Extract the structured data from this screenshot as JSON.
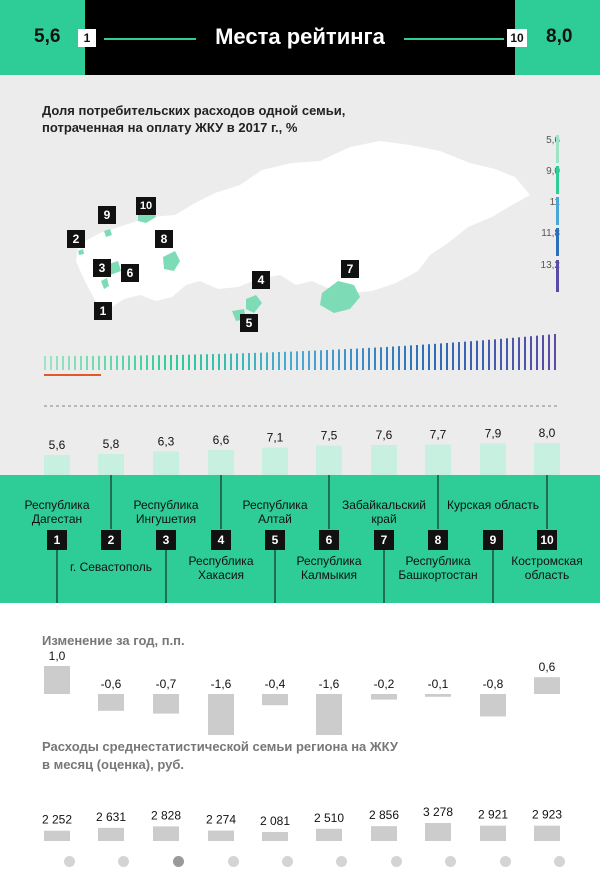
{
  "header": {
    "title": "Места рейтинга",
    "left_value": "5,6",
    "left_rank": "1",
    "right_value": "8,0",
    "right_rank": "10"
  },
  "map_title": "Доля потребительских расходов одной семьи, потраченная на оплату ЖКУ в 2017 г., %",
  "map_legend": [
    {
      "label": "5,6",
      "color": "#9fe3c6"
    },
    {
      "label": "9,0",
      "color": "#2ecc96"
    },
    {
      "label": "11",
      "color": "#4aa6d6"
    },
    {
      "label": "11,8",
      "color": "#2a6fb8"
    },
    {
      "label": "13,2",
      "color": "#5b4aa6"
    }
  ],
  "map_markers": [
    "1",
    "2",
    "3",
    "4",
    "5",
    "6",
    "7",
    "8",
    "9",
    "10"
  ],
  "chart_data": [
    {
      "type": "bar",
      "title": "Доля потребительских расходов одной семьи, потраченная на оплату ЖКУ в 2017 г., %",
      "categories": [
        "Республика Дагестан",
        "г. Севастополь",
        "Республика Ингушетия",
        "Республика Хакасия",
        "Республика Алтай",
        "Республика Калмыкия",
        "Забайкальский край",
        "Республика Башкортостан",
        "Курская область",
        "Костромская область"
      ],
      "ranks": [
        "1",
        "2",
        "3",
        "4",
        "5",
        "6",
        "7",
        "8",
        "9",
        "10"
      ],
      "values": [
        5.6,
        5.8,
        6.3,
        6.6,
        7.1,
        7.5,
        7.6,
        7.7,
        7.9,
        8.0
      ],
      "labels": [
        "5,6",
        "5,8",
        "6,3",
        "6,6",
        "7,1",
        "7,5",
        "7,6",
        "7,7",
        "7,9",
        "8,0"
      ],
      "ylim": [
        0,
        8.0
      ],
      "color": "#c8f0e0"
    },
    {
      "type": "bar",
      "title": "Изменение за год, п.п.",
      "values": [
        1.0,
        -0.6,
        -0.7,
        -1.6,
        -0.4,
        -1.6,
        -0.2,
        -0.1,
        -0.8,
        0.6
      ],
      "labels": [
        "1,0",
        "-0,6",
        "-0,7",
        "-1,6",
        "-0,4",
        "-1,6",
        "-0,2",
        "-0,1",
        "-0,8",
        "0,6"
      ],
      "color": "#cccccc"
    },
    {
      "type": "bar",
      "title": "Расходы среднестатистической семьи региона на ЖКУ в месяц (оценка), руб.",
      "values": [
        2252,
        2631,
        2828,
        2274,
        2081,
        2510,
        2856,
        3278,
        2921,
        2923
      ],
      "labels": [
        "2 252",
        "2 631",
        "2 828",
        "2 274",
        "2 081",
        "2 510",
        "2 856",
        "3 278",
        "2 921",
        "2 923"
      ],
      "ylim": [
        0,
        3278
      ],
      "color": "#cccccc"
    }
  ],
  "pager": {
    "count": 10,
    "active": 2
  },
  "colors": {
    "accent": "#2ecc96",
    "dark": "#000000",
    "grey_band": "#ececec",
    "region_shape": "#7ddcb6"
  }
}
